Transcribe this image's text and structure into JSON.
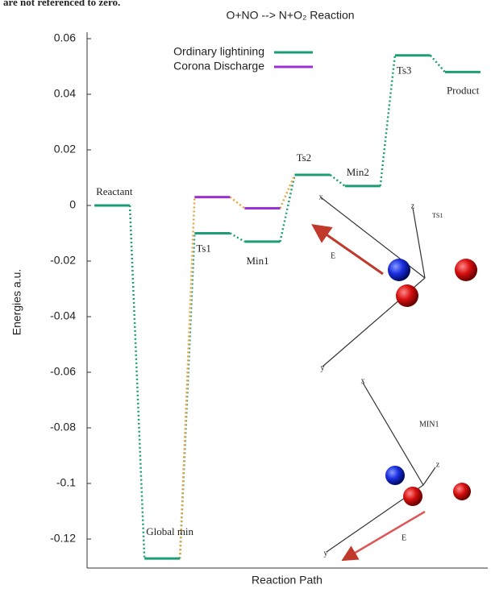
{
  "header_note": "are not referenced to zero.",
  "chart_data": {
    "type": "energy_levels",
    "title": "O+NO --> N+O₂ Reaction",
    "x_label": "Reaction Path",
    "y_label": "Energies a.u.",
    "categories": [
      "Reactant",
      "Global min",
      "Ts1",
      "Min1",
      "Ts2",
      "Min2",
      "Ts3",
      "Product"
    ],
    "series": [
      {
        "name": "Ordinary lightining",
        "color": "#1b9e77",
        "connector_color": "#1b9e77",
        "values": [
          0,
          -0.127,
          -0.01,
          -0.013,
          0.011,
          0.007,
          0.054,
          0.048
        ]
      },
      {
        "name": "Corona Discharge",
        "color": "#9b30d9",
        "connector_color": "#e8a33d",
        "values": [
          null,
          null,
          0.003,
          -0.001,
          null,
          null,
          null,
          null
        ]
      }
    ],
    "ylim": [
      -0.13,
      0.06
    ],
    "yticks": [
      -0.12,
      -0.1,
      -0.08,
      -0.06,
      -0.04,
      -0.02,
      0,
      0.02,
      0.04,
      0.06
    ],
    "legend": "top center"
  },
  "insets": [
    {
      "label": "TS1",
      "axes": [
        "x",
        "y",
        "z"
      ],
      "field": "E"
    },
    {
      "label": "MIN1",
      "axes": [
        "x",
        "y",
        "z"
      ],
      "field": "E"
    }
  ]
}
